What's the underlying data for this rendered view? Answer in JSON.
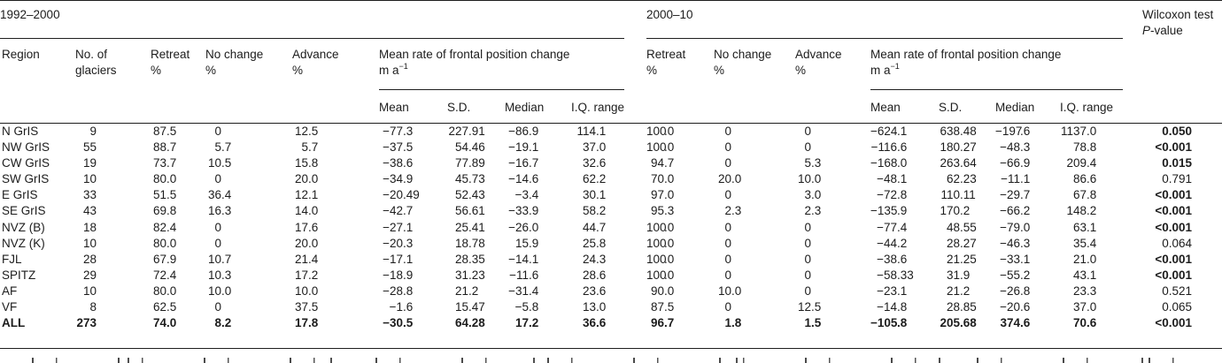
{
  "colors": {
    "text": "#1c1c1c",
    "rule": "#1e1e1e",
    "background": "#ffffff"
  },
  "table": {
    "span_headers": {
      "period1": "1992–2000",
      "period2": "2000–10",
      "wilcoxon_line1": "Wilcoxon test",
      "wilcoxon_p": "P",
      "wilcoxon_suffix": "-value"
    },
    "column_headers": {
      "region": "Region",
      "glaciers_l1": "No. of",
      "glaciers_l2": "glaciers",
      "retreat_l1": "Retreat",
      "retreat_l2": "%",
      "nochange_l1": "No change",
      "nochange_l2": "%",
      "advance_l1": "Advance",
      "advance_l2": "%",
      "meanrate_l1": "Mean rate of frontal position change",
      "meanrate_unit_prefix": "m a",
      "meanrate_unit_sup": "−1",
      "sub_mean": "Mean",
      "sub_sd": "S.D.",
      "sub_median": "Median",
      "sub_iq": "I.Q. range"
    },
    "rows": [
      {
        "region": "N GrIS",
        "n": "9",
        "r1": "87.5",
        "nc1": "0",
        "a1": "12.5",
        "mean1": "−77.3",
        "sd1": "227.91",
        "med1": "−86.9",
        "iq1": "114.1",
        "r2": "100.0",
        "nc2": "0",
        "a2": "0",
        "mean2": "−624.1",
        "sd2": "638.48",
        "med2": "−197.6",
        "iq2": "1137.0",
        "p": "0.050",
        "p_bold": true,
        "bold": false
      },
      {
        "region": "NW GrIS",
        "n": "55",
        "r1": "88.7",
        "nc1": "5.7",
        "a1": "5.7",
        "mean1": "−37.5",
        "sd1": "54.46",
        "med1": "−19.1",
        "iq1": "37.0",
        "r2": "100.0",
        "nc2": "0",
        "a2": "0",
        "mean2": "−116.6",
        "sd2": "180.27",
        "med2": "−48.3",
        "iq2": "78.8",
        "p": "<0.001",
        "p_bold": true,
        "bold": false
      },
      {
        "region": "CW GrIS",
        "n": "19",
        "r1": "73.7",
        "nc1": "10.5",
        "a1": "15.8",
        "mean1": "−38.6",
        "sd1": "77.89",
        "med1": "−16.7",
        "iq1": "32.6",
        "r2": "94.7",
        "nc2": "0",
        "a2": "5.3",
        "mean2": "−168.0",
        "sd2": "263.64",
        "med2": "−66.9",
        "iq2": "209.4",
        "p": "0.015",
        "p_bold": true,
        "bold": false
      },
      {
        "region": "SW GrIS",
        "n": "10",
        "r1": "80.0",
        "nc1": "0",
        "a1": "20.0",
        "mean1": "−34.9",
        "sd1": "45.73",
        "med1": "−14.6",
        "iq1": "62.2",
        "r2": "70.0",
        "nc2": "20.0",
        "a2": "10.0",
        "mean2": "−48.1",
        "sd2": "62.23",
        "med2": "−11.1",
        "iq2": "86.6",
        "p": "0.791",
        "p_bold": false,
        "bold": false
      },
      {
        "region": "E GrIS",
        "n": "33",
        "r1": "51.5",
        "nc1": "36.4",
        "a1": "12.1",
        "mean1": "−20.49",
        "sd1": "52.43",
        "med1": "−3.4",
        "iq1": "30.1",
        "r2": "97.0",
        "nc2": "0",
        "a2": "3.0",
        "mean2": "−72.8",
        "sd2": "110.11",
        "med2": "−29.7",
        "iq2": "67.8",
        "p": "<0.001",
        "p_bold": true,
        "bold": false
      },
      {
        "region": "SE GrIS",
        "n": "43",
        "r1": "69.8",
        "nc1": "16.3",
        "a1": "14.0",
        "mean1": "−42.7",
        "sd1": "56.61",
        "med1": "−33.9",
        "iq1": "58.2",
        "r2": "95.3",
        "nc2": "2.3",
        "a2": "2.3",
        "mean2": "−135.9",
        "sd2": "170.2",
        "med2": "−66.2",
        "iq2": "148.2",
        "p": "<0.001",
        "p_bold": true,
        "bold": false
      },
      {
        "region": "NVZ (B)",
        "n": "18",
        "r1": "82.4",
        "nc1": "0",
        "a1": "17.6",
        "mean1": "−27.1",
        "sd1": "25.41",
        "med1": "−26.0",
        "iq1": "44.7",
        "r2": "100.0",
        "nc2": "0",
        "a2": "0",
        "mean2": "−77.4",
        "sd2": "48.55",
        "med2": "−79.0",
        "iq2": "63.1",
        "p": "<0.001",
        "p_bold": true,
        "bold": false
      },
      {
        "region": "NVZ (K)",
        "n": "10",
        "r1": "80.0",
        "nc1": "0",
        "a1": "20.0",
        "mean1": "−20.3",
        "sd1": "18.78",
        "med1": "15.9",
        "iq1": "25.8",
        "r2": "100.0",
        "nc2": "0",
        "a2": "0",
        "mean2": "−44.2",
        "sd2": "28.27",
        "med2": "−46.3",
        "iq2": "35.4",
        "p": "0.064",
        "p_bold": false,
        "bold": false
      },
      {
        "region": "FJL",
        "n": "28",
        "r1": "67.9",
        "nc1": "10.7",
        "a1": "21.4",
        "mean1": "−17.1",
        "sd1": "28.35",
        "med1": "−14.1",
        "iq1": "24.3",
        "r2": "100.0",
        "nc2": "0",
        "a2": "0",
        "mean2": "−38.6",
        "sd2": "21.25",
        "med2": "−33.1",
        "iq2": "21.0",
        "p": "<0.001",
        "p_bold": true,
        "bold": false
      },
      {
        "region": "SPITZ",
        "n": "29",
        "r1": "72.4",
        "nc1": "10.3",
        "a1": "17.2",
        "mean1": "−18.9",
        "sd1": "31.23",
        "med1": "−11.6",
        "iq1": "28.6",
        "r2": "100.0",
        "nc2": "0",
        "a2": "0",
        "mean2": "−58.33",
        "sd2": "31.9",
        "med2": "−55.2",
        "iq2": "43.1",
        "p": "<0.001",
        "p_bold": true,
        "bold": false
      },
      {
        "region": "AF",
        "n": "10",
        "r1": "80.0",
        "nc1": "10.0",
        "a1": "10.0",
        "mean1": "−28.8",
        "sd1": "21.2",
        "med1": "−31.4",
        "iq1": "23.6",
        "r2": "90.0",
        "nc2": "10.0",
        "a2": "0",
        "mean2": "−23.1",
        "sd2": "21.2",
        "med2": "−26.8",
        "iq2": "23.3",
        "p": "0.521",
        "p_bold": false,
        "bold": false
      },
      {
        "region": "VF",
        "n": "8",
        "r1": "62.5",
        "nc1": "0",
        "a1": "37.5",
        "mean1": "−1.6",
        "sd1": "15.47",
        "med1": "−5.8",
        "iq1": "13.0",
        "r2": "87.5",
        "nc2": "0",
        "a2": "12.5",
        "mean2": "−14.8",
        "sd2": "28.85",
        "med2": "−20.6",
        "iq2": "37.0",
        "p": "0.065",
        "p_bold": false,
        "bold": false
      },
      {
        "region": "ALL",
        "n": "273",
        "r1": "74.0",
        "nc1": "8.2",
        "a1": "17.8",
        "mean1": "−30.5",
        "sd1": "64.28",
        "med1": "17.2",
        "iq1": "36.6",
        "r2": "96.7",
        "nc2": "1.8",
        "a2": "1.5",
        "mean2": "−105.8",
        "sd2": "205.68",
        "med2": "374.6",
        "iq2": "70.6",
        "p": "<0.001",
        "p_bold": true,
        "bold": true
      }
    ]
  }
}
